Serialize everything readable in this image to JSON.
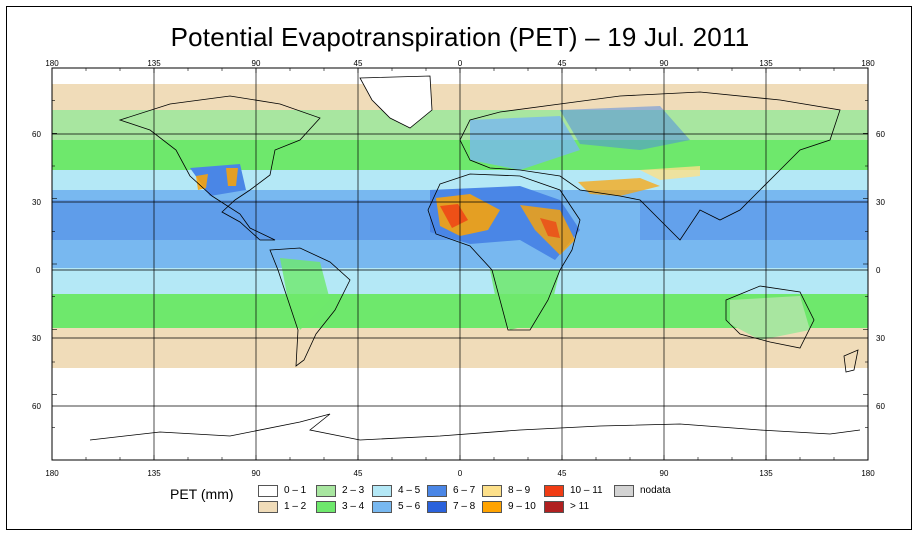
{
  "title": "Potential Evapotranspiration (PET) – 19 Jul. 2011",
  "legend_title": "PET (mm)",
  "lon_ticks": [
    "180",
    "135",
    "90",
    "45",
    "0",
    "45",
    "90",
    "135",
    "180"
  ],
  "lat_ticks": [
    "60",
    "30",
    "0",
    "30",
    "60"
  ],
  "legend": [
    {
      "label": "0 – 1",
      "color": "#ffffff"
    },
    {
      "label": "1 – 2",
      "color": "#f0dcb9"
    },
    {
      "label": "2 – 3",
      "color": "#a8e6a0"
    },
    {
      "label": "3 – 4",
      "color": "#6ee86c"
    },
    {
      "label": "4 – 5",
      "color": "#b4e8f6"
    },
    {
      "label": "5 – 6",
      "color": "#78b8f0"
    },
    {
      "label": "6 – 7",
      "color": "#4a86e6"
    },
    {
      "label": "7 – 8",
      "color": "#2a62dc"
    },
    {
      "label": "8 – 9",
      "color": "#fde08a"
    },
    {
      "label": "9 – 10",
      "color": "#ffa300"
    },
    {
      "label": "10 – 11",
      "color": "#f03c14"
    },
    {
      "label": "> 11",
      "color": "#b02020"
    },
    {
      "label": "nodata",
      "color": "#d3d3d3"
    }
  ]
}
